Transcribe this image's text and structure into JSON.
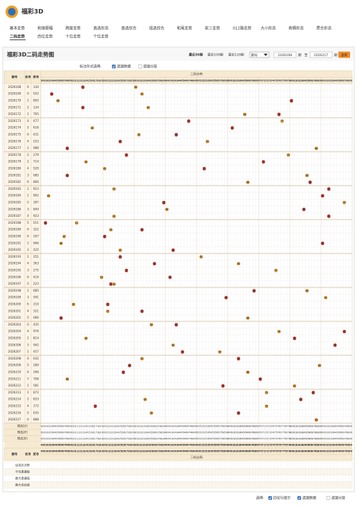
{
  "logo_text": "福彩3D",
  "nav": [
    [
      "基本走势",
      "和值振幅",
      "跨度走势",
      "直选形态",
      "直选综合",
      "组选综合",
      "和尾走势",
      "前三走势",
      "012路走势",
      "大小形态",
      "奇偶形态",
      "质合形态"
    ],
    [
      "二码走势",
      "四位走势",
      "十位走势",
      "个位走势"
    ]
  ],
  "nav_active": [
    1,
    0
  ],
  "panel": {
    "title": "福彩3D二码走势图",
    "quick": [
      "最近50期",
      "最近100期",
      "最近120期"
    ],
    "select": "期号",
    "from": "2026168",
    "unit": "期",
    "sep": "至",
    "to": "2026217",
    "button": "查看"
  },
  "options": {
    "label": "标注形式选择:",
    "items": [
      "遗漏数据",
      "遗漏分层"
    ],
    "checked": [
      true,
      false
    ]
  },
  "table": {
    "headers": [
      "期号",
      "机号",
      "奖号"
    ],
    "group": "二码分布",
    "columns": [
      "00",
      "01",
      "02",
      "03",
      "04",
      "05",
      "06",
      "07",
      "08",
      "09",
      "10",
      "11",
      "12",
      "13",
      "14",
      "15",
      "16",
      "17",
      "18",
      "19",
      "20",
      "21",
      "22",
      "23",
      "24",
      "25",
      "26",
      "27",
      "28",
      "29",
      "30",
      "31",
      "32",
      "33",
      "34",
      "35",
      "36",
      "37",
      "38",
      "39",
      "40",
      "41",
      "42",
      "43",
      "44",
      "45",
      "46",
      "47",
      "48",
      "49",
      "50",
      "51",
      "52",
      "53",
      "54",
      "55",
      "56",
      "57",
      "58",
      "59",
      "60",
      "61",
      "62",
      "63",
      "64",
      "65",
      "66",
      "67",
      "68",
      "69",
      "70",
      "71",
      "72",
      "73",
      "74",
      "75",
      "76",
      "77",
      "78",
      "79",
      "80",
      "81",
      "82",
      "83",
      "84",
      "85",
      "86",
      "87",
      "88",
      "89",
      "90",
      "91",
      "92",
      "93",
      "94",
      "95",
      "96",
      "97",
      "98",
      "99"
    ],
    "hit_colors": [
      "#c8372d",
      "#e9a23b"
    ],
    "rows": [
      {
        "issue": "2026168",
        "machine": "6",
        "result": "130",
        "hits": [
          "13",
          "30"
        ]
      },
      {
        "issue": "2026169",
        "machine": "0",
        "result": "032",
        "hits": [
          "03",
          "32"
        ]
      },
      {
        "issue": "2026170",
        "machine": "1",
        "result": "805",
        "hits": [
          "80",
          "05"
        ]
      },
      {
        "issue": "2026171",
        "machine": "2",
        "result": "134",
        "hits": [
          "13",
          "34"
        ]
      },
      {
        "issue": "2026172",
        "machine": "1",
        "result": "765",
        "hits": [
          "76",
          "65"
        ]
      },
      {
        "issue": "2026173",
        "machine": "4",
        "result": "477",
        "hits": [
          "47",
          "77"
        ]
      },
      {
        "issue": "2026174",
        "machine": "5",
        "result": "616",
        "hits": [
          "61",
          "16"
        ]
      },
      {
        "issue": "2026175",
        "machine": "6",
        "result": "431",
        "hits": [
          "43",
          "31"
        ]
      },
      {
        "issue": "2026176",
        "machine": "4",
        "result": "253",
        "hits": [
          "25",
          "53"
        ]
      },
      {
        "issue": "2026177",
        "machine": "1",
        "result": "088",
        "hits": [
          "08",
          "88"
        ]
      },
      {
        "issue": "2026178",
        "machine": "2",
        "result": "279",
        "hits": [
          "27",
          "79"
        ]
      },
      {
        "issue": "2026179",
        "machine": "2",
        "result": "714",
        "hits": [
          "71",
          "14"
        ]
      },
      {
        "issue": "2026180",
        "machine": "4",
        "result": "520",
        "hits": [
          "52",
          "20"
        ]
      },
      {
        "issue": "2026181",
        "machine": "3",
        "result": "085",
        "hits": [
          "08",
          "85"
        ]
      },
      {
        "issue": "2026182",
        "machine": "6",
        "result": "866",
        "hits": [
          "86",
          "66"
        ]
      },
      {
        "issue": "2026183",
        "machine": "1",
        "result": "923",
        "hits": [
          "92",
          "23"
        ]
      },
      {
        "issue": "2026184",
        "machine": "1",
        "result": "902",
        "hits": [
          "90",
          "02"
        ]
      },
      {
        "issue": "2026185",
        "machine": "5",
        "result": "397",
        "hits": [
          "39",
          "97"
        ]
      },
      {
        "issue": "2026186",
        "machine": "3",
        "result": "840",
        "hits": [
          "84",
          "40"
        ]
      },
      {
        "issue": "2026187",
        "machine": "4",
        "result": "923",
        "hits": [
          "92",
          "23"
        ]
      },
      {
        "issue": "2026188",
        "machine": "5",
        "result": "011",
        "hits": [
          "01",
          "11"
        ]
      },
      {
        "issue": "2026189",
        "machine": "6",
        "result": "322",
        "hits": [
          "32",
          "22"
        ]
      },
      {
        "issue": "2026190",
        "machine": "6",
        "result": "207",
        "hits": [
          "20",
          "07"
        ]
      },
      {
        "issue": "2026191",
        "machine": "1",
        "result": "906",
        "hits": [
          "90",
          "06"
        ]
      },
      {
        "issue": "2026192",
        "machine": "3",
        "result": "425",
        "hits": [
          "42",
          "25"
        ]
      },
      {
        "issue": "2026193",
        "machine": "1",
        "result": "251",
        "hits": [
          "25",
          "51"
        ]
      },
      {
        "issue": "2026194",
        "machine": "4",
        "result": "363",
        "hits": [
          "36",
          "63"
        ]
      },
      {
        "issue": "2026195",
        "machine": "3",
        "result": "275",
        "hits": [
          "27",
          "75"
        ]
      },
      {
        "issue": "2026196",
        "machine": "6",
        "result": "419",
        "hits": [
          "41",
          "19"
        ]
      },
      {
        "issue": "2026197",
        "machine": "5",
        "result": "223",
        "hits": [
          "22",
          "23"
        ]
      },
      {
        "issue": "2026198",
        "machine": "1",
        "result": "685",
        "hits": [
          "68",
          "85"
        ]
      },
      {
        "issue": "2026199",
        "machine": "3",
        "result": "591",
        "hits": [
          "59",
          "91"
        ]
      },
      {
        "issue": "2026200",
        "machine": "6",
        "result": "210",
        "hits": [
          "21",
          "10"
        ]
      },
      {
        "issue": "2026201",
        "machine": "4",
        "result": "321",
        "hits": [
          "32",
          "21"
        ]
      },
      {
        "issue": "2026202",
        "machine": "5",
        "result": "066",
        "hits": [
          "06",
          "66"
        ]
      },
      {
        "issue": "2026203",
        "machine": "0",
        "result": "435",
        "hits": [
          "43",
          "35"
        ]
      },
      {
        "issue": "2026204",
        "machine": "4",
        "result": "976",
        "hits": [
          "97",
          "76"
        ]
      },
      {
        "issue": "2026205",
        "machine": "1",
        "result": "814",
        "hits": [
          "81",
          "14"
        ]
      },
      {
        "issue": "2026206",
        "machine": "3",
        "result": "942",
        "hits": [
          "94",
          "42"
        ]
      },
      {
        "issue": "2026207",
        "machine": "1",
        "result": "457",
        "hits": [
          "45",
          "57"
        ]
      },
      {
        "issue": "2026208",
        "machine": "4",
        "result": "632",
        "hits": [
          "63",
          "32"
        ]
      },
      {
        "issue": "2026209",
        "machine": "5",
        "result": "289",
        "hits": [
          "28",
          "89"
        ]
      },
      {
        "issue": "2026210",
        "machine": "6",
        "result": "266",
        "hits": [
          "26",
          "66"
        ]
      },
      {
        "issue": "2026211",
        "machine": "7",
        "result": "708",
        "hits": [
          "70",
          "08"
        ]
      },
      {
        "issue": "2026212",
        "machine": "1",
        "result": "581",
        "hits": [
          "58",
          "81"
        ]
      },
      {
        "issue": "2026213",
        "machine": "1",
        "result": "872",
        "hits": [
          "87",
          "72"
        ]
      },
      {
        "issue": "2026214",
        "machine": "5",
        "result": "833",
        "hits": [
          "83",
          "33"
        ]
      },
      {
        "issue": "2026215",
        "machine": "4",
        "result": "172",
        "hits": [
          "17",
          "72"
        ]
      },
      {
        "issue": "2026216",
        "machine": "5",
        "result": "635",
        "hits": [
          "63",
          "35"
        ]
      },
      {
        "issue": "2026217",
        "machine": "6",
        "result": "888",
        "hits": [
          "88",
          "88"
        ]
      }
    ],
    "preselect": [
      "预选1行",
      "预选2行",
      "预选3行"
    ],
    "stats": [
      "出现总次数",
      "平均遗漏值",
      "最大遗漏值",
      "最大连出值"
    ]
  },
  "footer": {
    "label": "选择:",
    "items": [
      "四位行提示",
      "遗漏数据",
      "遗漏分层"
    ],
    "checked": [
      true,
      true,
      false
    ]
  }
}
